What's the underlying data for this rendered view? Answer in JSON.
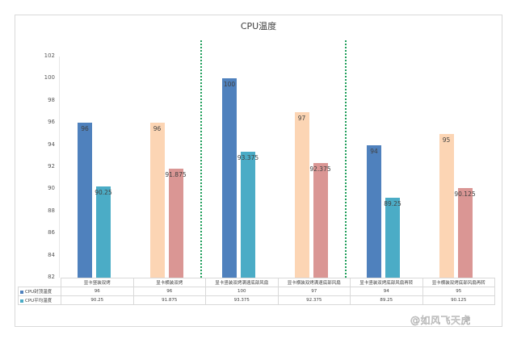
{
  "chart_data": {
    "type": "bar",
    "title": "CPU温度",
    "xlabel": "",
    "ylabel": "",
    "ylim": [
      82,
      102
    ],
    "yticks": [
      82,
      84,
      86,
      88,
      90,
      92,
      94,
      96,
      98,
      100,
      102
    ],
    "grid": false,
    "legend_position": "data-table",
    "categories": [
      "显卡竖装双烤",
      "显卡横装双烤",
      "显卡竖装双烤满速底部风扇",
      "显卡横装双烤满速底部风扇",
      "显卡竖装双烤底部风扇再转",
      "显卡横装双烤底部风扇再转"
    ],
    "series": [
      {
        "name": "CPU封顶温度",
        "values": [
          96,
          96,
          100,
          97,
          94,
          95
        ]
      },
      {
        "name": "CPU平均温度",
        "values": [
          90.25,
          91.875,
          93.375,
          92.375,
          89.25,
          90.125
        ]
      }
    ],
    "bar_colors": {
      "peak_vertical": "#4f81bd",
      "avg_vertical": "#4bacc6",
      "peak_horizontal": "#fcd5b4",
      "avg_horizontal": "#da9694"
    },
    "separator_color": "#1e9e5a",
    "data_table": {
      "rows": [
        {
          "legend": "CPU封顶温度",
          "color": "#4f81bd",
          "values": [
            "96",
            "96",
            "100",
            "97",
            "94",
            "95"
          ]
        },
        {
          "legend": "CPU平均温度",
          "color": "#4bacc6",
          "values": [
            "90.25",
            "91.875",
            "93.375",
            "92.375",
            "89.25",
            "90.125"
          ]
        }
      ]
    }
  },
  "watermark": "@如风飞天虎"
}
